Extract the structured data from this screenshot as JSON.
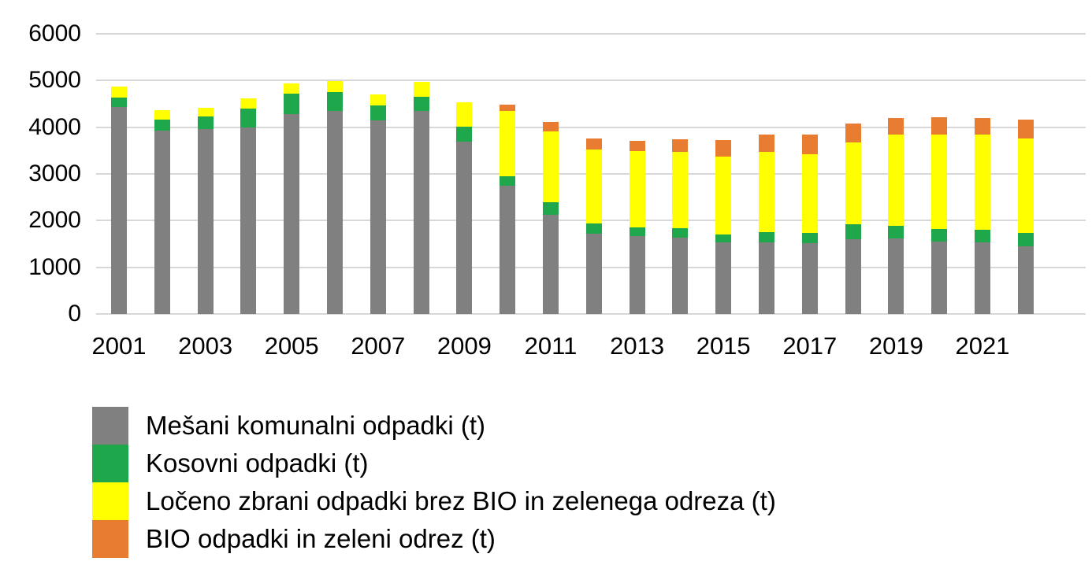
{
  "chart_data": {
    "type": "bar",
    "stacked": true,
    "title": "",
    "xlabel": "",
    "ylabel": "",
    "ylim": [
      0,
      6000
    ],
    "yticks": [
      0,
      1000,
      2000,
      3000,
      4000,
      5000,
      6000
    ],
    "grid": true,
    "legend_position": "bottom-left",
    "categories": [
      "2001",
      "2002",
      "2003",
      "2004",
      "2005",
      "2006",
      "2007",
      "2008",
      "2009",
      "2010",
      "2011",
      "2012",
      "2013",
      "2014",
      "2015",
      "2016",
      "2017",
      "2018",
      "2019",
      "2020",
      "2021",
      "2022"
    ],
    "x_tick_labels_shown": [
      "2001",
      "2003",
      "2005",
      "2007",
      "2009",
      "2011",
      "2013",
      "2015",
      "2017",
      "2019",
      "2021"
    ],
    "series": [
      {
        "name": "Mešani komunalni odpadki (t)",
        "color": "#808080",
        "values": [
          4425,
          3930,
          3960,
          4000,
          4280,
          4340,
          4140,
          4340,
          3695,
          2750,
          2120,
          1725,
          1665,
          1640,
          1530,
          1540,
          1510,
          1600,
          1615,
          1545,
          1530,
          1455
        ]
      },
      {
        "name": "Kosovni odpadki (t)",
        "color": "#1ea74b",
        "values": [
          215,
          240,
          265,
          395,
          435,
          410,
          325,
          310,
          310,
          200,
          270,
          220,
          185,
          200,
          180,
          215,
          220,
          320,
          280,
          280,
          265,
          280
        ]
      },
      {
        "name": "Ločeno zbrani odpadki brez BIO in zelenega odreza (t)",
        "color": "#ffff00",
        "values": [
          235,
          200,
          195,
          225,
          225,
          240,
          245,
          325,
          535,
          1390,
          1515,
          1570,
          1645,
          1640,
          1665,
          1715,
          1695,
          1760,
          1940,
          2010,
          2040,
          2025
        ]
      },
      {
        "name": "BIO odpadki in zeleni odrez (t)",
        "color": "#e87d31",
        "values": [
          0,
          0,
          0,
          0,
          0,
          0,
          0,
          0,
          0,
          150,
          210,
          250,
          210,
          260,
          350,
          380,
          410,
          395,
          355,
          375,
          355,
          410
        ]
      }
    ]
  },
  "colors": {
    "background": "#ffffff",
    "gridline": "#d8d8d8",
    "text": "#000000"
  }
}
